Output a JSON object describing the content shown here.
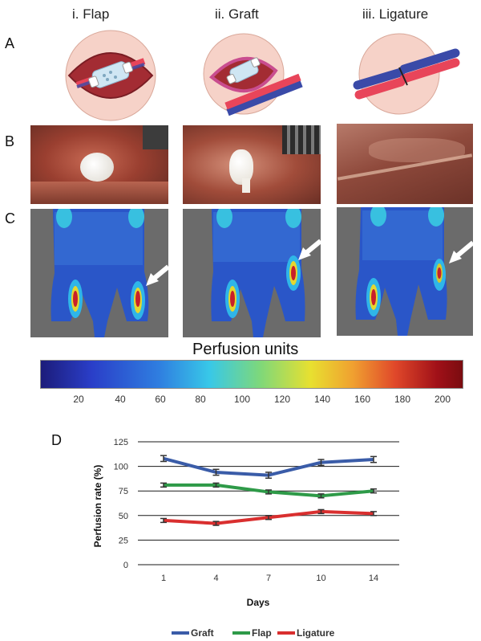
{
  "panel_a": {
    "label": "A",
    "columns": [
      "i. Flap",
      "ii. Graft",
      "iii. Ligature"
    ]
  },
  "panel_b": {
    "label": "B"
  },
  "panel_c": {
    "label": "C"
  },
  "colorbar": {
    "title": "Perfusion units",
    "ticks": [
      "20",
      "40",
      "60",
      "80",
      "100",
      "120",
      "140",
      "160",
      "180",
      "200"
    ]
  },
  "colors": {
    "vein": "#3a4aa8",
    "artery": "#e8455a",
    "disc": "#f6d2c8",
    "graft": "#3a5ca8",
    "flap": "#2e9a48",
    "ligature": "#d92f2f"
  },
  "chart_data": {
    "type": "line",
    "panel_label": "D",
    "categories": [
      "1",
      "4",
      "7",
      "10",
      "14"
    ],
    "xlabel": "Days",
    "ylabel": "Perfusion rate (%)",
    "ylim": [
      0,
      125
    ],
    "yticks": [
      "0",
      "25",
      "50",
      "75",
      "100",
      "125"
    ],
    "grid": true,
    "legend_position": "bottom",
    "series": [
      {
        "name": "Graft",
        "values": [
          108,
          94,
          91,
          104,
          107
        ],
        "error": [
          3,
          3,
          3,
          3,
          3
        ]
      },
      {
        "name": "Flap",
        "values": [
          81,
          81,
          74,
          70,
          75
        ],
        "error": [
          2,
          2,
          2,
          2,
          2
        ]
      },
      {
        "name": "Ligature",
        "values": [
          45,
          42,
          48,
          54,
          52
        ],
        "error": [
          2,
          2,
          2,
          2,
          2
        ]
      }
    ]
  }
}
